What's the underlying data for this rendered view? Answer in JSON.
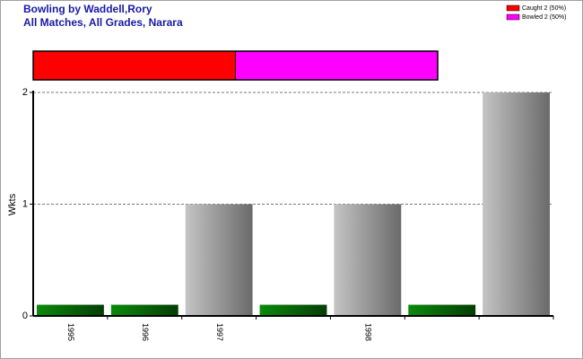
{
  "chart_data": {
    "type": "bar",
    "title": "Bowling by Waddell,Rory",
    "subtitle": "All Matches, All Grades, Narara",
    "ylabel": "Wkts",
    "categories": [
      "1995",
      "1996",
      "1997",
      null,
      "1998",
      null,
      null
    ],
    "values": [
      0.1,
      0.1,
      1,
      0.1,
      1,
      0.1,
      2
    ],
    "colors": [
      "green",
      "green",
      "grey",
      "green",
      "grey",
      "green",
      "grey"
    ],
    "ylim": [
      0,
      2
    ],
    "yticks": [
      0,
      1,
      2
    ],
    "grid": true,
    "legend": [
      {
        "label": "Caught 2 (50%)",
        "color": "#ff0000",
        "value": 2
      },
      {
        "label": "Bowled 2 (50%)",
        "color": "#ff00ff",
        "value": 2
      }
    ]
  }
}
